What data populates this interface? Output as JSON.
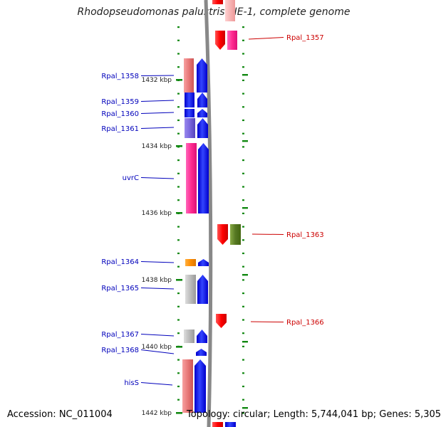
{
  "title": "Rhodopseudomonas palustris TIE-1, complete genome",
  "footer": {
    "accession": "Accession: NC_011004",
    "summary": "Topology: circular; Length: 5,744,041 bp; Genes: 5,305"
  },
  "colors": {
    "backbone": "#888888",
    "left_label": "#0000bb",
    "right_label": "#cc0000",
    "tick": "#118811",
    "blue": "#0000ff",
    "pink": "#ff3399",
    "salmon": "#e87878",
    "red": "#ff0000",
    "olive": "#668822",
    "orange": "#ff8c00",
    "grey": "#b0b0b0",
    "violet": "#7a66dd"
  },
  "scale_labels": [
    "1432 kbp",
    "1434 kbp",
    "1436 kbp",
    "1438 kbp",
    "1440 kbp",
    "1442 kbp"
  ],
  "left_genes": [
    {
      "label": "Rpal_1358"
    },
    {
      "label": "Rpal_1359"
    },
    {
      "label": "Rpal_1360"
    },
    {
      "label": "Rpal_1361"
    },
    {
      "label": "uvrC"
    },
    {
      "label": "Rpal_1364"
    },
    {
      "label": "Rpal_1365"
    },
    {
      "label": "Rpal_1367"
    },
    {
      "label": "Rpal_1368"
    },
    {
      "label": "hisS"
    }
  ],
  "right_genes": [
    {
      "label": "Rpal_1357"
    },
    {
      "label": "Rpal_1363"
    },
    {
      "label": "Rpal_1366"
    }
  ]
}
